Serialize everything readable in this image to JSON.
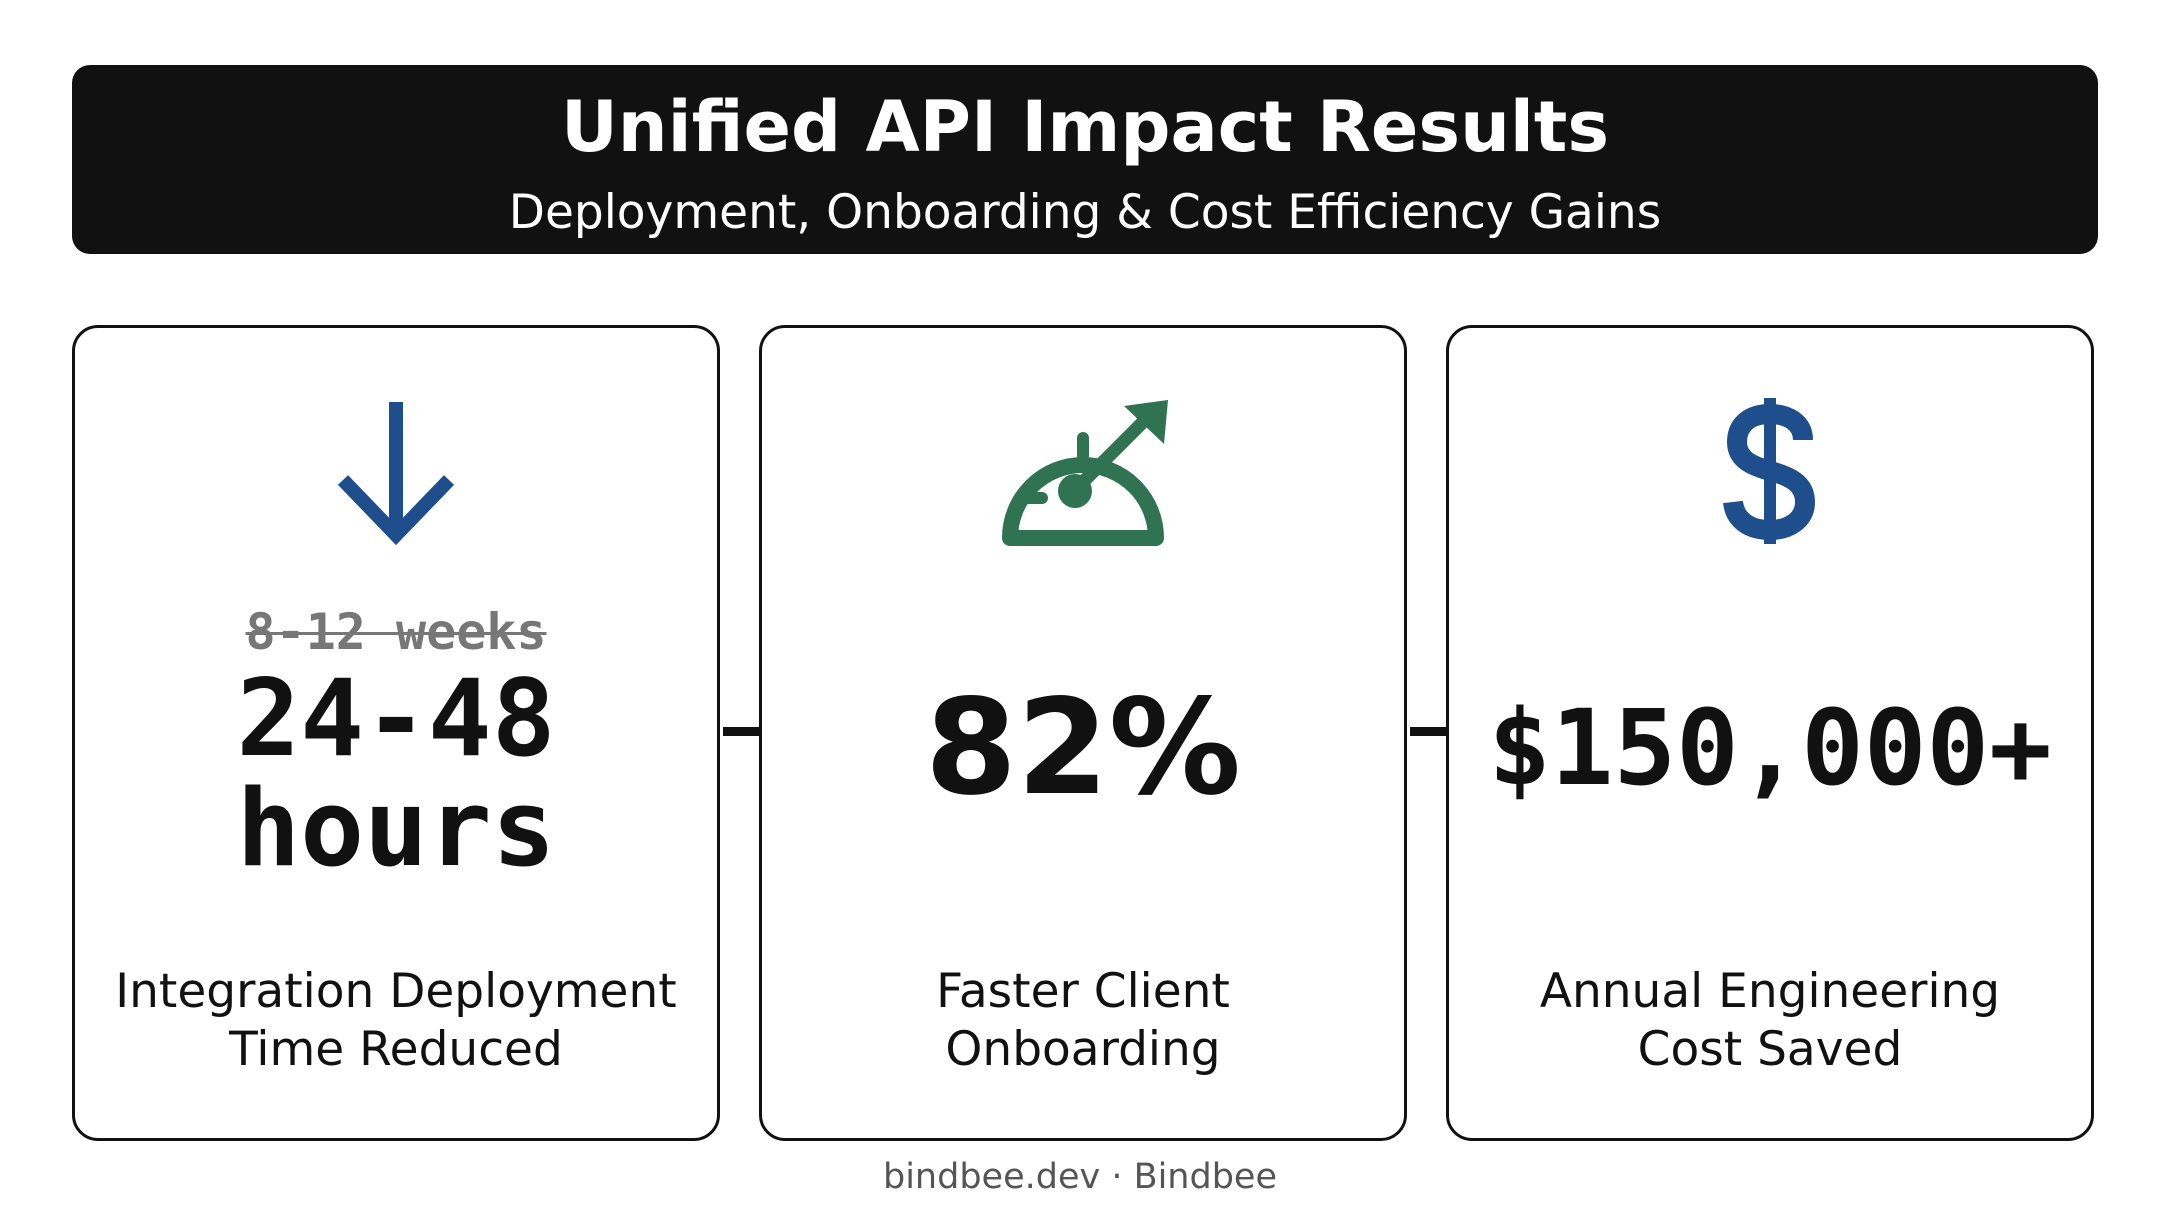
{
  "header": {
    "title": "Unified API Impact Results",
    "subtitle": "Deployment, Onboarding & Cost Efficiency Gains"
  },
  "cards": [
    {
      "icon": "arrow-down-icon",
      "icon_color": "#1f4e8c",
      "old_value": "8-12 weeks",
      "value_line1": "24-48",
      "value_line2": "hours",
      "label_line1": "Integration Deployment",
      "label_line2": "Time Reduced"
    },
    {
      "icon": "speedometer-icon",
      "icon_color": "#2f7352",
      "value": "82%",
      "label_line1": "Faster Client",
      "label_line2": "Onboarding"
    },
    {
      "icon": "dollar-icon",
      "icon_color": "#1f4e8c",
      "value": "$150,000+",
      "label_line1": "Annual Engineering",
      "label_line2": "Cost Saved"
    }
  ],
  "footer": {
    "text": "bindbee.dev · Bindbee"
  }
}
